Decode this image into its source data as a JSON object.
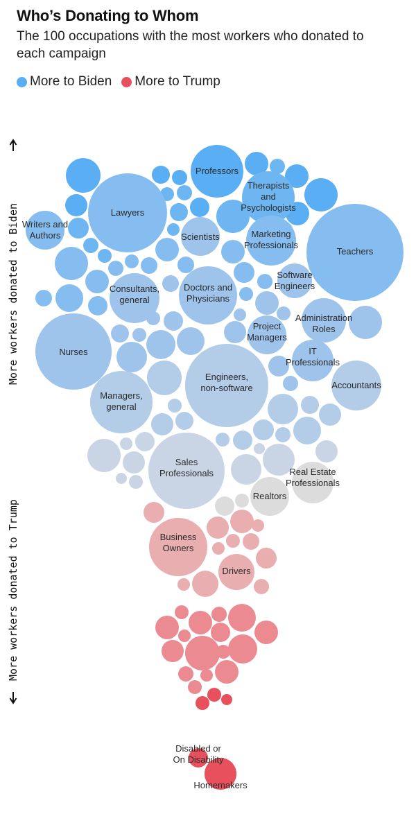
{
  "header": {
    "title": "Who’s Donating to Whom",
    "subtitle": "The 100 occupations with the most workers who donated to each campaign"
  },
  "legend": [
    {
      "label": "More to Biden",
      "color": "#5aaef3"
    },
    {
      "label": "More to Trump",
      "color": "#e8505e"
    }
  ],
  "axis": {
    "top_label": "More workers donated to Biden",
    "bottom_label": "More workers donated to Trump"
  },
  "chart_data": {
    "type": "bubble",
    "title": "Who’s Donating to Whom",
    "subtitle": "The 100 occupations with the most workers who donated to each campaign",
    "ylabel_top": "More workers donated to Biden",
    "ylabel_bottom": "More workers donated to Trump",
    "series": [
      {
        "name": "More to Biden",
        "color": "#5aaef3"
      },
      {
        "name": "More to Trump",
        "color": "#e8505e"
      }
    ],
    "labeled_occupations": [
      "Professors",
      "Therapists and Psychologists",
      "Lawyers",
      "Writers and Authors",
      "Scientists",
      "Marketing Professionals",
      "Teachers",
      "Software Engineers",
      "Consultants, general",
      "Doctors and Physicians",
      "Administration Roles",
      "Project Managers",
      "Nurses",
      "IT Professionals",
      "Accountants",
      "Engineers, non-software",
      "Managers, general",
      "Sales Professionals",
      "Real Estate Professionals",
      "Realtors",
      "Business Owners",
      "Drivers",
      "Disabled or On Disability",
      "Homemakers"
    ]
  }
}
